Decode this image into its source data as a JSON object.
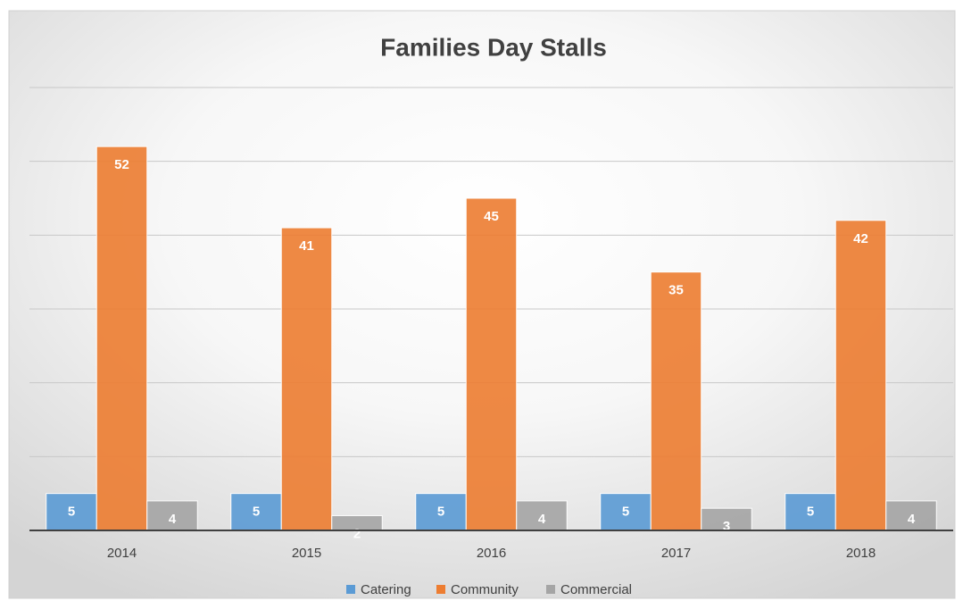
{
  "chart_data": {
    "type": "bar",
    "title": "Families Day Stalls",
    "categories": [
      "2014",
      "2015",
      "2016",
      "2017",
      "2018"
    ],
    "series": [
      {
        "name": "Catering",
        "color": "#5b9bd5",
        "values": [
          5,
          5,
          5,
          5,
          5
        ]
      },
      {
        "name": "Community",
        "color": "#ed7d31",
        "values": [
          52,
          41,
          45,
          35,
          42
        ]
      },
      {
        "name": "Commercial",
        "color": "#a5a5a5",
        "values": [
          4,
          2,
          4,
          3,
          4
        ]
      }
    ],
    "ylim": [
      0,
      60
    ],
    "yticks": [
      0,
      10,
      20,
      30,
      40,
      50,
      60
    ],
    "grid": true,
    "legend": "bottom"
  }
}
